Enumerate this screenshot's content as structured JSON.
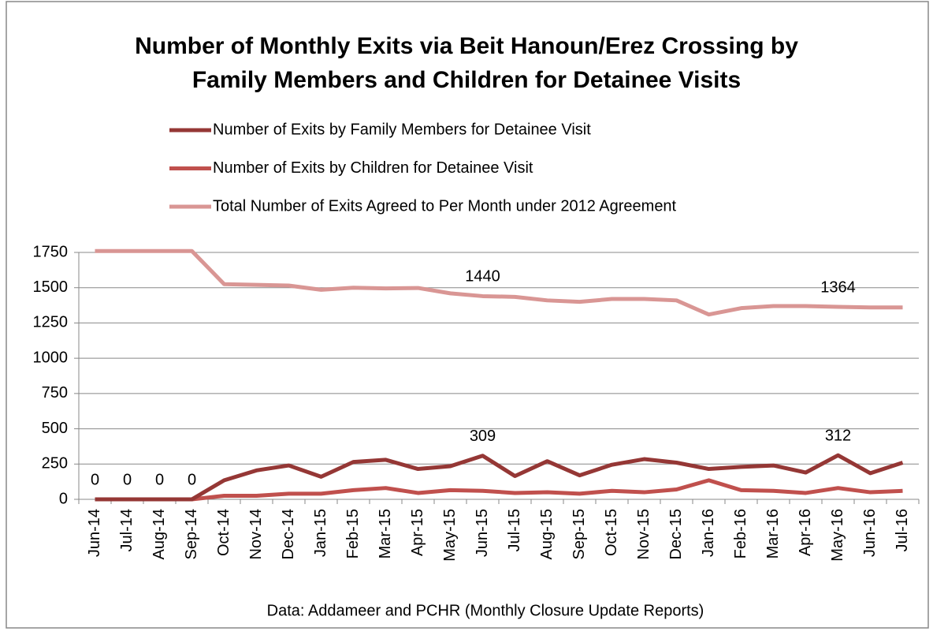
{
  "chart_data": {
    "type": "line",
    "title": "Number of Monthly Exits via Beit Hanoun/Erez Crossing by Family Members and Children for Detainee Visits",
    "footnote": "Data: Addameer and PCHR (Monthly Closure Update Reports)",
    "categories": [
      "Jun-14",
      "Jul-14",
      "Aug-14",
      "Sep-14",
      "Oct-14",
      "Nov-14",
      "Dec-14",
      "Jan-15",
      "Feb-15",
      "Mar-15",
      "Apr-15",
      "May-15",
      "Jun-15",
      "Jul-15",
      "Aug-15",
      "Sep-15",
      "Oct-15",
      "Nov-15",
      "Dec-15",
      "Jan-16",
      "Feb-16",
      "Mar-16",
      "Apr-16",
      "May-16",
      "Jun-16",
      "Jul-16"
    ],
    "series": [
      {
        "name": "Number of Exits by Family Members for Detainee Visit",
        "color": "#953735",
        "values": [
          0,
          0,
          0,
          0,
          135,
          205,
          240,
          160,
          265,
          280,
          215,
          235,
          309,
          165,
          270,
          170,
          245,
          285,
          260,
          215,
          230,
          240,
          190,
          312,
          185,
          260
        ],
        "labeled": [
          0,
          1,
          2,
          3,
          12,
          23
        ]
      },
      {
        "name": "Number of Exits by Children for Detainee Visit",
        "color": "#c0504d",
        "values": [
          0,
          0,
          0,
          0,
          25,
          25,
          40,
          40,
          65,
          80,
          45,
          65,
          60,
          45,
          50,
          40,
          60,
          50,
          70,
          135,
          65,
          60,
          45,
          80,
          50,
          60
        ],
        "labeled": []
      },
      {
        "name": "Total Number of Exits Agreed to Per Month under 2012 Agreement",
        "color": "#d99694",
        "values": [
          1760,
          1760,
          1760,
          1760,
          1525,
          1520,
          1515,
          1485,
          1500,
          1495,
          1498,
          1460,
          1440,
          1435,
          1410,
          1400,
          1420,
          1420,
          1410,
          1310,
          1355,
          1370,
          1370,
          1364,
          1360,
          1360
        ],
        "labeled": [
          12,
          23
        ]
      }
    ],
    "ylim": [
      0,
      1750
    ],
    "yticks": [
      0,
      250,
      500,
      750,
      1000,
      1250,
      1500,
      1750
    ],
    "grid": true
  }
}
